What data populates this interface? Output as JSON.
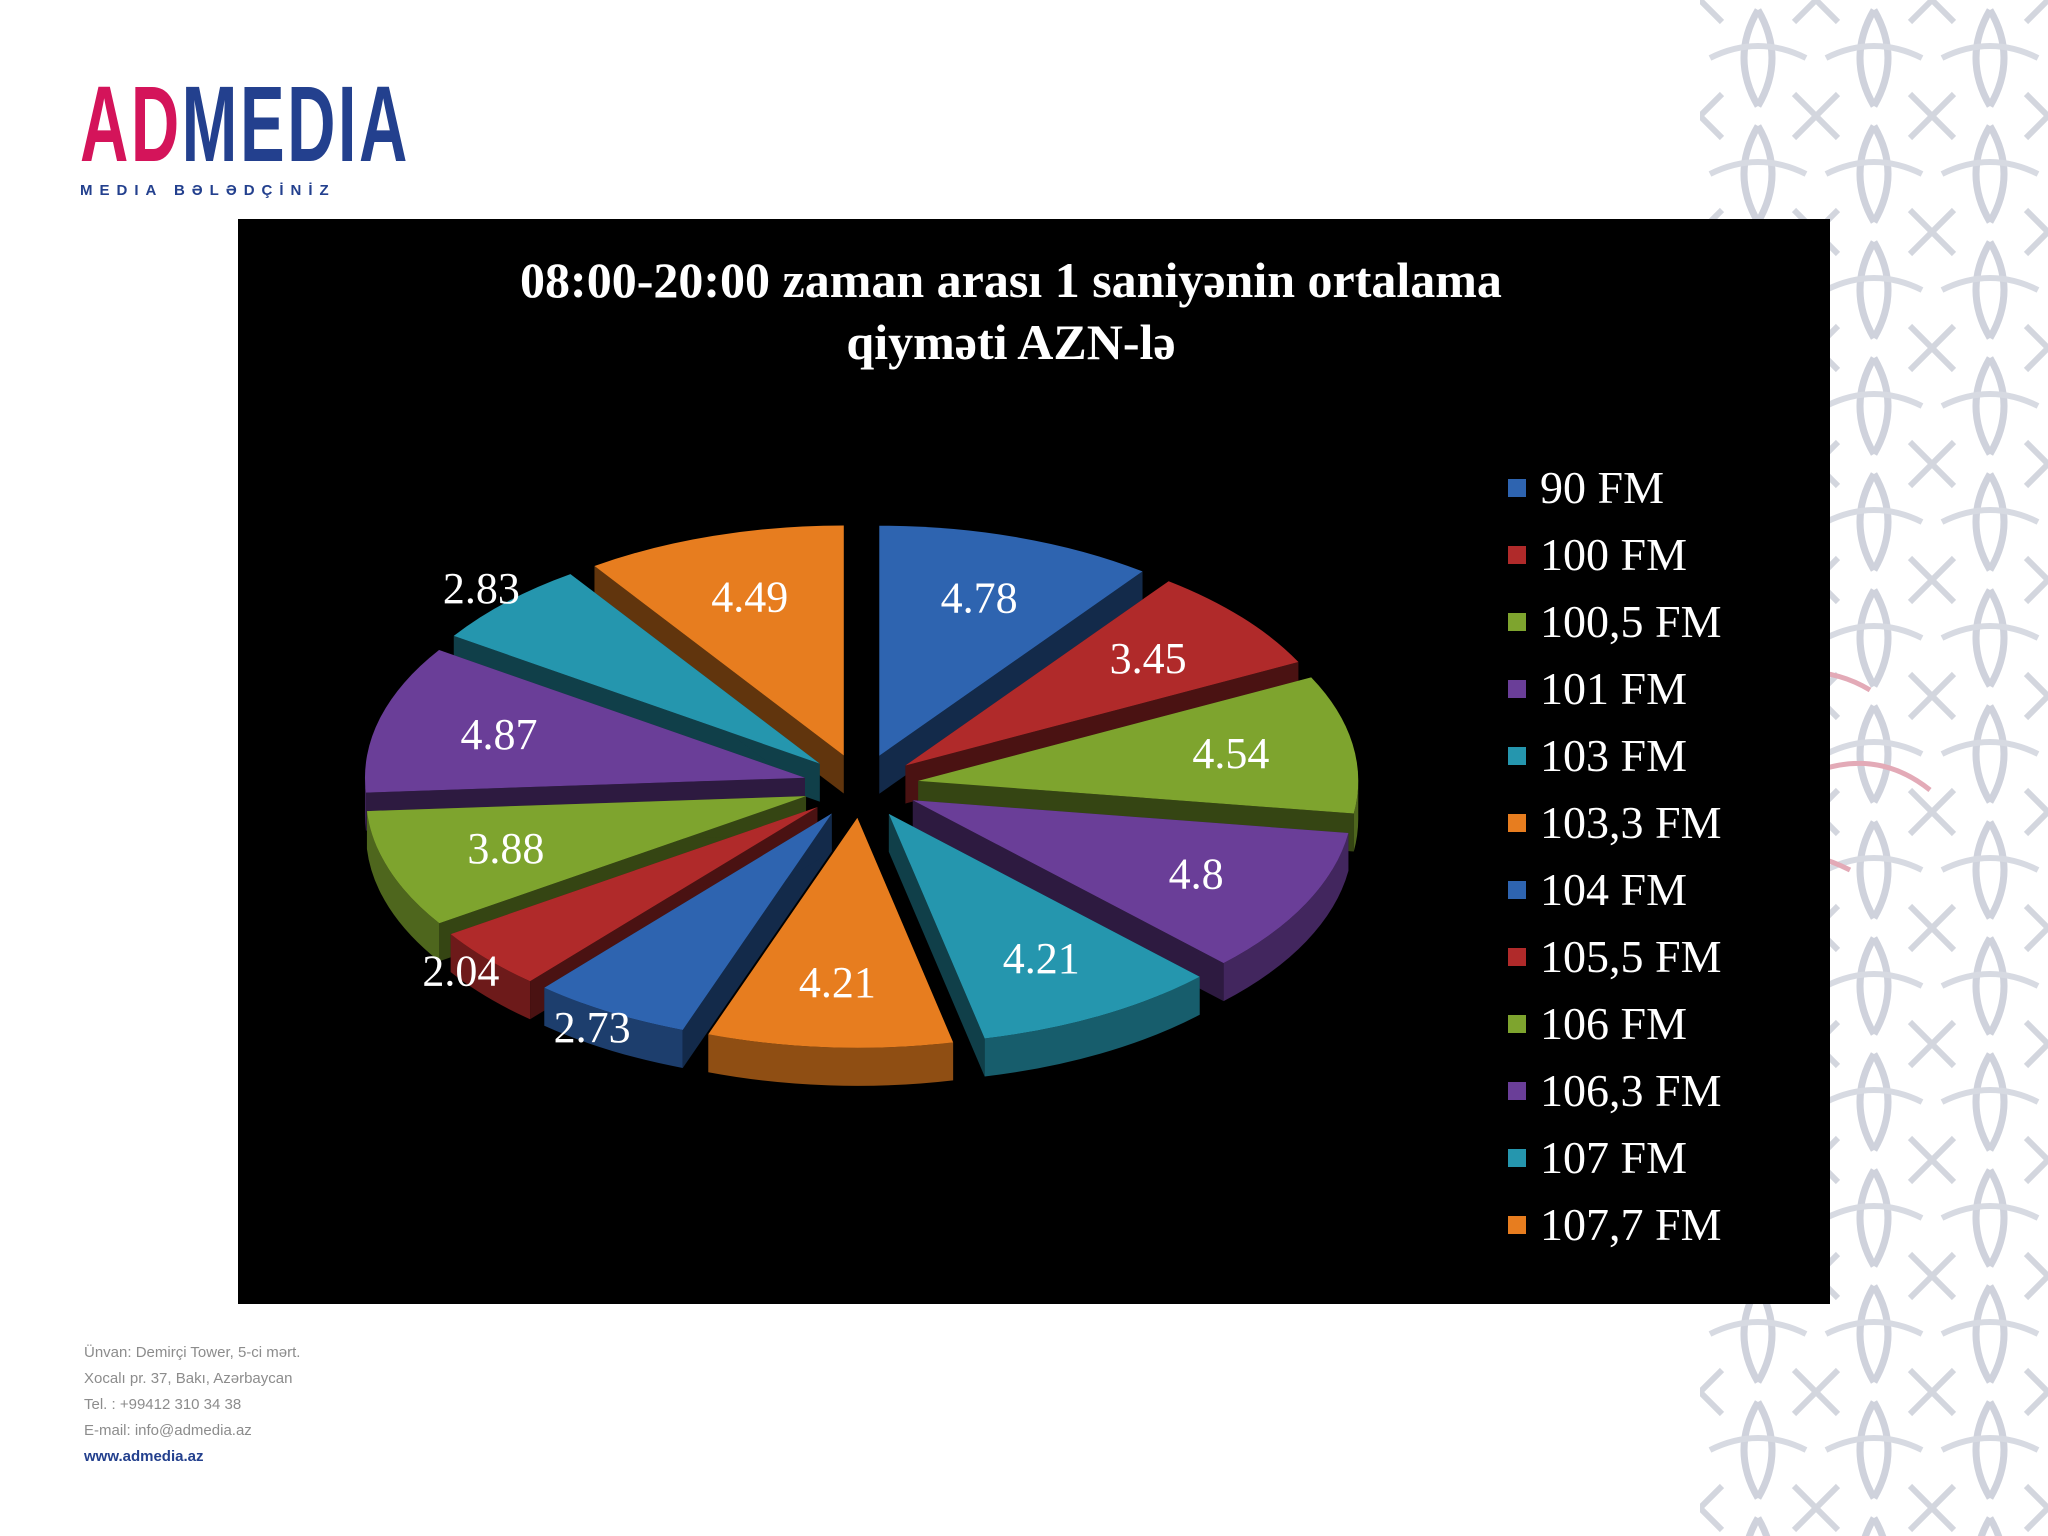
{
  "logo": {
    "word_left": "AD",
    "word_right": "MEDIA",
    "tagline": "MEDIA BƏLƏDÇİNİZ"
  },
  "chart_data": {
    "type": "pie",
    "title_lines": [
      "08:00-20:00 zaman arası 1 saniyənin ortalama",
      "qiyməti AZN-lə"
    ],
    "categories": [
      "90 FM",
      "100 FM",
      "100,5 FM",
      "101 FM",
      "103 FM",
      "103,3 FM",
      "104 FM",
      "105,5 FM",
      "106 FM",
      "106,3 FM",
      "107 FM",
      "107,7 FM"
    ],
    "values": [
      4.78,
      3.45,
      4.54,
      4.8,
      4.21,
      4.21,
      2.73,
      2.04,
      3.88,
      4.87,
      2.83,
      4.49
    ],
    "data_labels": [
      "4.78",
      "3.45",
      "4.54",
      "4.8",
      "4.21",
      "4.21",
      "2.73",
      "2.04",
      "3.88",
      "4.87",
      "2.83",
      "4.49"
    ],
    "colors": [
      "#2e64b0",
      "#b02a2a",
      "#7ea42e",
      "#6a3e98",
      "#2596ae",
      "#e77d1f",
      "#2e64b0",
      "#b02a2a",
      "#7ea42e",
      "#6a3e98",
      "#2596ae",
      "#e77d1f"
    ],
    "style": "3d-exploded",
    "legend_position": "right",
    "background": "#000000"
  },
  "footer": {
    "lines": [
      "Ünvan: Demirçi Tower, 5-ci mərt.",
      "Xocalı pr. 37, Bakı, Azərbaycan",
      "Tel. : +99412 310 34 38",
      "E-mail: info@admedia.az"
    ],
    "website": "www.admedia.az"
  }
}
